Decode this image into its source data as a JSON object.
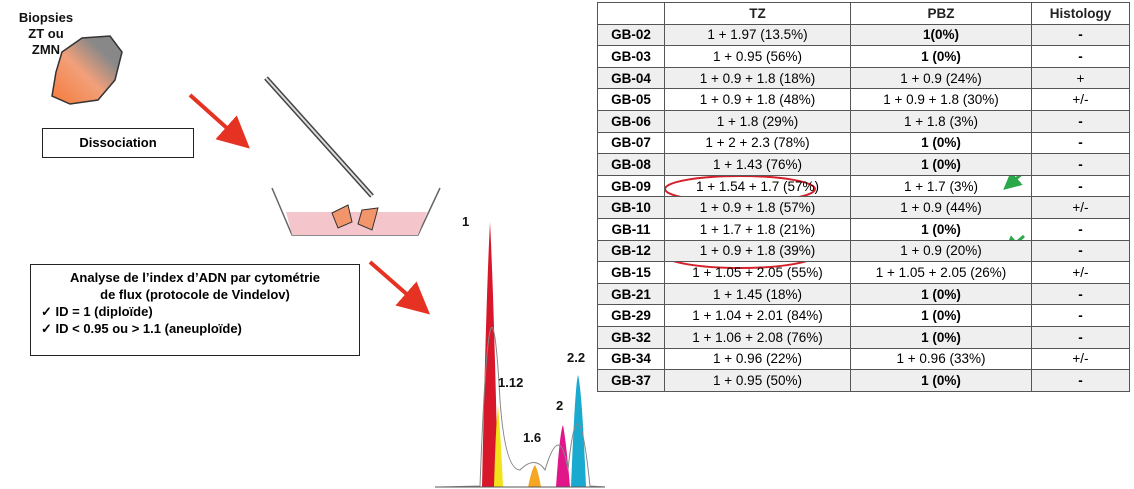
{
  "left": {
    "biopsy_label": [
      "Biopsies",
      "ZT ou ZMN"
    ],
    "dissociation": "Dissociation",
    "analysis": {
      "title": [
        "Analyse de l’index d’ADN par cytométrie",
        "de flux (protocole de Vindelov)"
      ],
      "criteria": [
        "✓ ID = 1 (diploïde)",
        "✓ ID < 0.95 ou > 1.1 (aneuploïde)"
      ]
    }
  },
  "histogram": {
    "peak_labels": [
      "1",
      "1.12",
      "1.6",
      "2",
      "2.2"
    ]
  },
  "table": {
    "headers": [
      "",
      "TZ",
      "PBZ",
      "Histology"
    ],
    "rows": [
      [
        "GB-02",
        "1 + 1.97 (13.5%)",
        "1(0%)",
        "-"
      ],
      [
        "GB-03",
        "1 + 0.95 (56%)",
        "1 (0%)",
        "-"
      ],
      [
        "GB-04",
        "1 + 0.9 + 1.8 (18%)",
        "1 + 0.9 (24%)",
        "+"
      ],
      [
        "GB-05",
        "1 + 0.9 + 1.8 (48%)",
        "1 + 0.9 + 1.8 (30%)",
        "+/-"
      ],
      [
        "GB-06",
        "1 + 1.8 (29%)",
        "1 + 1.8 (3%)",
        "-"
      ],
      [
        "GB-07",
        "1 + 2 + 2.3 (78%)",
        "1 (0%)",
        "-"
      ],
      [
        "GB-08",
        "1 + 1.43 (76%)",
        "1 (0%)",
        "-"
      ],
      [
        "GB-09",
        "1 + 1.54 + 1.7 (57%)",
        "1 + 1.7 (3%)",
        "-"
      ],
      [
        "GB-10",
        "1 + 0.9 + 1.8 (57%)",
        "1 + 0.9 (44%)",
        "+/-"
      ],
      [
        "GB-11",
        "1 + 1.7 + 1.8 (21%)",
        "1 (0%)",
        "-"
      ],
      [
        "GB-12",
        "1 + 0.9 + 1.8 (39%)",
        "1 + 0.9 (20%)",
        "-"
      ],
      [
        "GB-15",
        "1 + 1.05 + 2.05 (55%)",
        "1 + 1.05 + 2.05 (26%)",
        "+/-"
      ],
      [
        "GB-21",
        "1 + 1.45 (18%)",
        "1 (0%)",
        "-"
      ],
      [
        "GB-29",
        "1 + 1.04 + 2.01 (84%)",
        "1 (0%)",
        "-"
      ],
      [
        "GB-32",
        "1 + 1.06 + 2.08 (76%)",
        "1 (0%)",
        "-"
      ],
      [
        "GB-34",
        "1 + 0.96 (22%)",
        "1 + 0.96 (33%)",
        "+/-"
      ],
      [
        "GB-37",
        "1 + 0.95 (50%)",
        "1 (0%)",
        "-"
      ]
    ]
  }
}
